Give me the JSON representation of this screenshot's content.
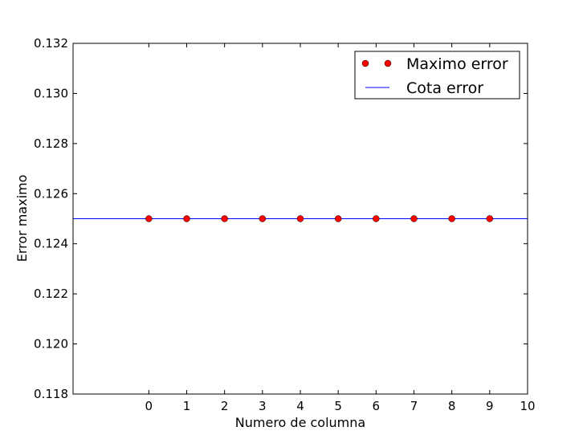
{
  "chart_data": {
    "type": "scatter",
    "xlabel": "Numero de columna",
    "ylabel": "Error maximo",
    "xlim": [
      -2,
      10
    ],
    "ylim": [
      0.118,
      0.132
    ],
    "x_ticks": [
      0,
      1,
      2,
      3,
      4,
      5,
      6,
      7,
      8,
      9,
      10
    ],
    "y_ticks": [
      0.118,
      0.12,
      0.122,
      0.124,
      0.126,
      0.128,
      0.13,
      0.132
    ],
    "y_tick_labels": [
      "0.118",
      "0.120",
      "0.122",
      "0.124",
      "0.126",
      "0.128",
      "0.130",
      "0.132"
    ],
    "grid": false,
    "legend_position": "top-right",
    "series": [
      {
        "name": "Maximo error",
        "kind": "markers",
        "color": "#ff0000",
        "x": [
          0,
          1,
          2,
          3,
          4,
          5,
          6,
          7,
          8,
          9
        ],
        "y": [
          0.125,
          0.125,
          0.125,
          0.125,
          0.125,
          0.125,
          0.125,
          0.125,
          0.125,
          0.125
        ]
      },
      {
        "name": "Cota error",
        "kind": "hline",
        "color": "#0000ff",
        "y": 0.125
      }
    ]
  }
}
